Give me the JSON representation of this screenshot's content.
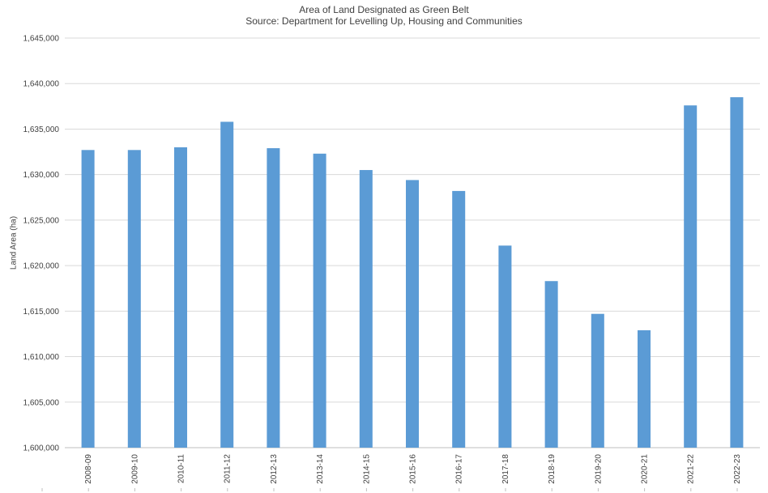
{
  "chart_data": {
    "type": "bar",
    "title": "Area of Land Designated as Green Belt",
    "subtitle": "Source: Department for Levelling Up, Housing and Communities",
    "xlabel": "",
    "ylabel": "Land Area (ha)",
    "ylim": [
      1600000,
      1645000
    ],
    "ytick_step": 5000,
    "grid": true,
    "bar_color": "#5b9bd5",
    "categories": [
      "2008-09",
      "2009-10",
      "2010-11",
      "2011-12",
      "2012-13",
      "2013-14",
      "2014-15",
      "2015-16",
      "2016-17",
      "2017-18",
      "2018-19",
      "2019-20",
      "2020-21",
      "2021-22",
      "2022-23"
    ],
    "values": [
      1632700,
      1632700,
      1633000,
      1635800,
      1632900,
      1632300,
      1630500,
      1629400,
      1628200,
      1622200,
      1618300,
      1614700,
      1612900,
      1637600,
      1638500
    ]
  }
}
